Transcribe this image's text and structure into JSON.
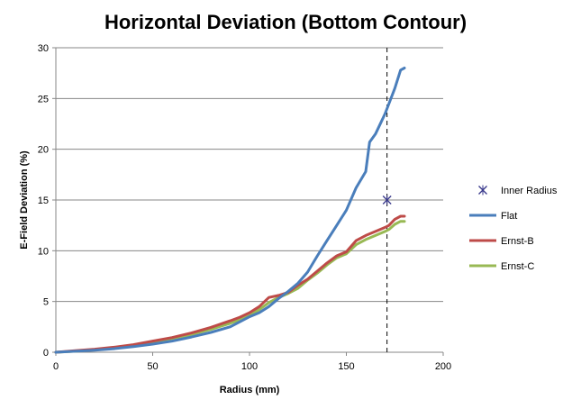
{
  "chart_data": {
    "type": "line",
    "title": "Horizontal Deviation (Bottom Contour)",
    "xlabel": "Radius  (mm)",
    "ylabel": "E-Field Deviation  (%)",
    "xlim": [
      0,
      200
    ],
    "ylim": [
      0,
      30
    ],
    "x_ticks": [
      0,
      50,
      100,
      150,
      200
    ],
    "y_ticks": [
      0,
      5,
      10,
      15,
      20,
      25,
      30
    ],
    "grid": "horizontal major gridlines",
    "legend_position": "right",
    "series": [
      {
        "name": "Flat",
        "kind": "line",
        "color": "#4a7ebb",
        "x": [
          0,
          10,
          20,
          30,
          40,
          50,
          60,
          70,
          80,
          90,
          95,
          100,
          105,
          110,
          115,
          120,
          125,
          130,
          135,
          140,
          145,
          150,
          155,
          160,
          162,
          165,
          170,
          172,
          175,
          178,
          180
        ],
        "y": [
          0,
          0.1,
          0.2,
          0.35,
          0.55,
          0.8,
          1.1,
          1.5,
          1.95,
          2.5,
          3.0,
          3.5,
          3.9,
          4.5,
          5.3,
          6.0,
          6.8,
          7.9,
          9.5,
          11.0,
          12.5,
          14.0,
          16.2,
          17.8,
          20.7,
          21.5,
          23.5,
          24.5,
          26.0,
          27.8,
          28.0
        ]
      },
      {
        "name": "Ernst-B",
        "kind": "line",
        "color": "#be4b48",
        "x": [
          0,
          10,
          20,
          30,
          40,
          50,
          60,
          70,
          80,
          90,
          95,
          100,
          105,
          110,
          115,
          120,
          125,
          130,
          135,
          140,
          145,
          150,
          155,
          160,
          165,
          170,
          172,
          175,
          178,
          180
        ],
        "y": [
          0,
          0.15,
          0.3,
          0.5,
          0.75,
          1.1,
          1.45,
          1.9,
          2.45,
          3.1,
          3.45,
          3.9,
          4.5,
          5.4,
          5.6,
          5.9,
          6.6,
          7.2,
          8.0,
          8.8,
          9.5,
          9.9,
          11.0,
          11.5,
          11.9,
          12.3,
          12.5,
          13.1,
          13.4,
          13.4
        ]
      },
      {
        "name": "Ernst-C",
        "kind": "line",
        "color": "#98b954",
        "x": [
          0,
          10,
          20,
          30,
          40,
          50,
          60,
          70,
          80,
          90,
          95,
          100,
          105,
          110,
          115,
          120,
          125,
          130,
          135,
          140,
          145,
          150,
          155,
          160,
          165,
          170,
          172,
          175,
          178,
          180
        ],
        "y": [
          0,
          0.1,
          0.25,
          0.45,
          0.7,
          1.0,
          1.35,
          1.75,
          2.25,
          2.85,
          3.2,
          3.6,
          4.2,
          4.9,
          5.4,
          5.8,
          6.3,
          7.1,
          7.8,
          8.6,
          9.3,
          9.7,
          10.6,
          11.1,
          11.5,
          11.9,
          12.1,
          12.6,
          12.9,
          12.9
        ]
      },
      {
        "name": "Inner Radius",
        "kind": "marker",
        "color": "#3a3a8c",
        "x": [
          171
        ],
        "y": [
          15
        ]
      }
    ],
    "reference_line": {
      "x": 171,
      "style": "dashed",
      "color": "#000000"
    }
  }
}
